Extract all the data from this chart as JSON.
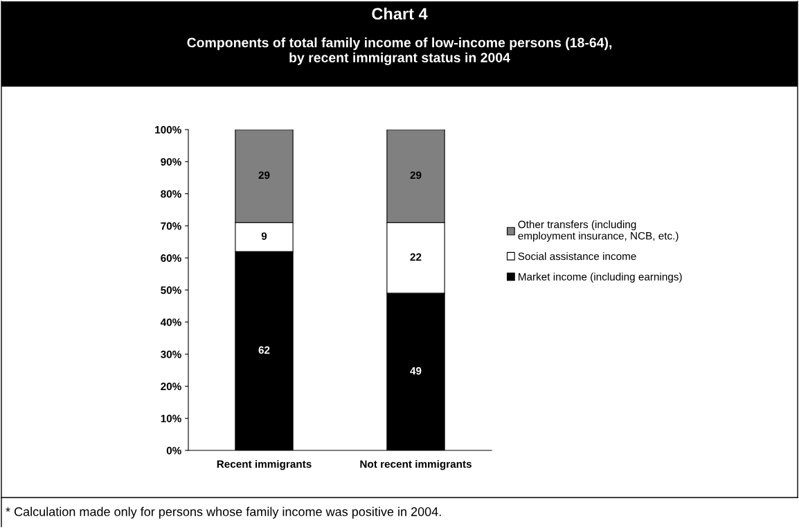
{
  "chart_data": {
    "type": "bar",
    "title": "Chart 4",
    "subtitle": "Components of total family income of low-income persons (18-64),\nby recent immigrant status in 2004",
    "categories": [
      "Recent immigrants",
      "Not recent immigrants"
    ],
    "stacked": true,
    "series": [
      {
        "name": "Market income (including earnings)",
        "color": "#000000",
        "values": [
          62,
          49
        ]
      },
      {
        "name": "Social assistance income",
        "color": "#ffffff",
        "values": [
          9,
          22
        ]
      },
      {
        "name": "Other transfers (including\nemployment insurance, NCB, etc.)",
        "color": "#808080",
        "values": [
          29,
          29
        ]
      }
    ],
    "ylim": [
      0,
      100
    ],
    "yticks": [
      {
        "value": 0,
        "label": "0%"
      },
      {
        "value": 10,
        "label": "10%"
      },
      {
        "value": 20,
        "label": "20%"
      },
      {
        "value": 30,
        "label": "30%"
      },
      {
        "value": 40,
        "label": "40%"
      },
      {
        "value": 50,
        "label": "50%"
      },
      {
        "value": 60,
        "label": "60%"
      },
      {
        "value": 70,
        "label": "70%"
      },
      {
        "value": 80,
        "label": "80%"
      },
      {
        "value": 90,
        "label": "90%"
      },
      {
        "value": 100,
        "label": "100%"
      }
    ],
    "data_labels": true,
    "legend": "right",
    "grid": false,
    "annotations": [
      "* Calculation made only for persons whose family income was positive in 2004."
    ]
  }
}
